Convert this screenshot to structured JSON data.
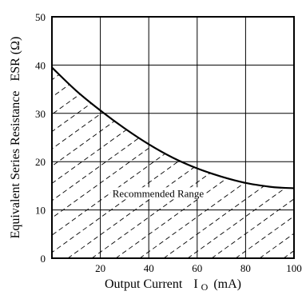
{
  "chart_data": {
    "type": "line",
    "xlabel": "Output Current",
    "xlabel_symbol": "I",
    "xlabel_subscript": "O",
    "xlabel_unit": "(mA)",
    "ylabel": "Equivalent Series Resistance",
    "ylabel_short": "ESR (Ω)",
    "xlim": [
      0,
      100
    ],
    "ylim": [
      0,
      50
    ],
    "x_ticks": [
      "20",
      "40",
      "60",
      "80",
      "100"
    ],
    "y_ticks": [
      "0",
      "10",
      "20",
      "30",
      "40",
      "50"
    ],
    "x_tick_values": [
      20,
      40,
      60,
      80,
      100
    ],
    "y_tick_values": [
      0,
      10,
      20,
      30,
      40,
      50
    ],
    "grid": true,
    "series": [
      {
        "x": [
          0,
          10,
          20,
          30,
          40,
          50,
          60,
          70,
          80,
          90,
          95,
          100
        ],
        "y": [
          39.5,
          34.7,
          30.6,
          26.9,
          23.6,
          20.8,
          18.6,
          16.9,
          15.6,
          14.8,
          14.6,
          14.5
        ]
      }
    ],
    "annotation": "Recommended Range",
    "shaded_region": "below curve (hatched)"
  }
}
